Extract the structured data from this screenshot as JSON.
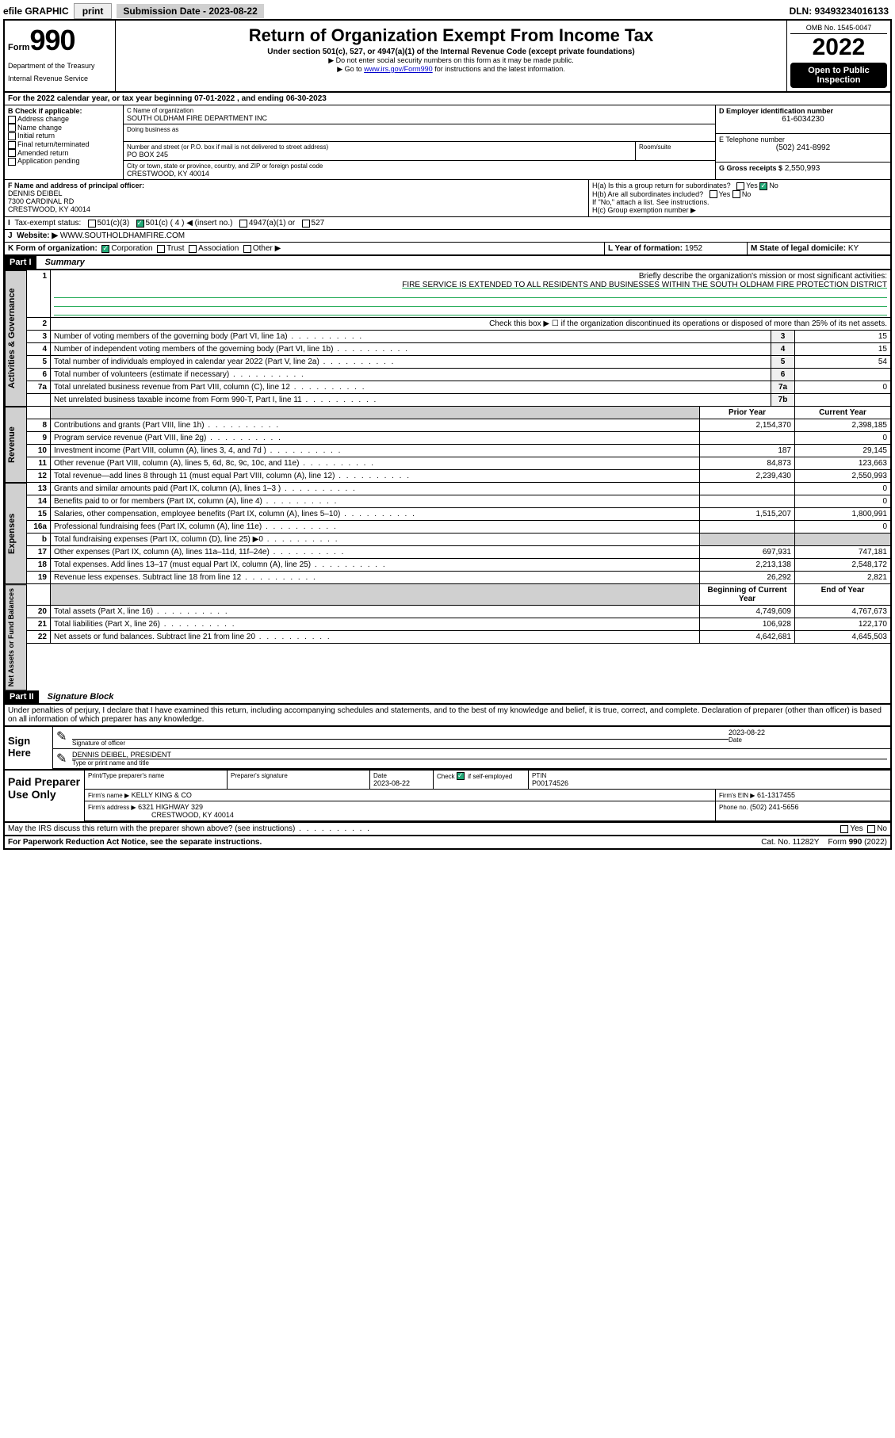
{
  "topbar": {
    "efile": "efile GRAPHIC",
    "print": "print",
    "subdate_label": "Submission Date - 2023-08-22",
    "dln": "DLN: 93493234016133"
  },
  "header": {
    "form_word": "Form",
    "form_num": "990",
    "dept": "Department of the Treasury",
    "irs": "Internal Revenue Service",
    "title": "Return of Organization Exempt From Income Tax",
    "sub": "Under section 501(c), 527, or 4947(a)(1) of the Internal Revenue Code (except private foundations)",
    "note1": "▶ Do not enter social security numbers on this form as it may be made public.",
    "note2_pre": "▶ Go to ",
    "note2_link": "www.irs.gov/Form990",
    "note2_post": " for instructions and the latest information.",
    "omb": "OMB No. 1545-0047",
    "year": "2022",
    "open": "Open to Public Inspection"
  },
  "A": {
    "text": "For the 2022 calendar year, or tax year beginning 07-01-2022   , and ending 06-30-2023"
  },
  "B": {
    "label": "B Check if applicable:",
    "addr": "Address change",
    "name": "Name change",
    "init": "Initial return",
    "final": "Final return/terminated",
    "amend": "Amended return",
    "app": "Application pending"
  },
  "C": {
    "label": "C Name of organization",
    "org": "SOUTH OLDHAM FIRE DEPARTMENT INC",
    "dba_label": "Doing business as",
    "street_label": "Number and street (or P.O. box if mail is not delivered to street address)",
    "room_label": "Room/suite",
    "street": "PO BOX 245",
    "city_label": "City or town, state or province, country, and ZIP or foreign postal code",
    "city": "CRESTWOOD, KY  40014"
  },
  "D": {
    "label": "D Employer identification number",
    "val": "61-6034230"
  },
  "E": {
    "label": "E Telephone number",
    "val": "(502) 241-8992"
  },
  "G": {
    "label": "G Gross receipts $",
    "val": "2,550,993"
  },
  "F": {
    "label": "F Name and address of principal officer:",
    "name": "DENNIS DEIBEL",
    "addr1": "7300 CARDINAL RD",
    "addr2": "CRESTWOOD, KY  40014"
  },
  "H": {
    "a": "H(a)  Is this a group return for subordinates?",
    "b": "H(b)  Are all subordinates included?",
    "b_note": "If \"No,\" attach a list. See instructions.",
    "c": "H(c)  Group exemption number ▶",
    "yes": "Yes",
    "no": "No"
  },
  "I": {
    "label": "Tax-exempt status:",
    "c3": "501(c)(3)",
    "c4": "501(c) ( 4 ) ◀ (insert no.)",
    "a4947": "4947(a)(1) or",
    "s527": "527"
  },
  "J": {
    "label": "Website: ▶",
    "val": "WWW.SOUTHOLDHAMFIRE.COM"
  },
  "K": {
    "label": "K Form of organization:",
    "corp": "Corporation",
    "trust": "Trust",
    "assoc": "Association",
    "other": "Other ▶"
  },
  "L": {
    "label": "L Year of formation:",
    "val": "1952"
  },
  "M": {
    "label": "M State of legal domicile:",
    "val": "KY"
  },
  "part1": {
    "label": "Part I",
    "title": "Summary",
    "tab_ag": "Activities & Governance",
    "tab_rev": "Revenue",
    "tab_exp": "Expenses",
    "tab_net": "Net Assets or Fund Balances",
    "l1_label": "Briefly describe the organization's mission or most significant activities:",
    "l1_val": "FIRE SERVICE IS EXTENDED TO ALL RESIDENTS AND BUSINESSES WITHIN THE SOUTH OLDHAM FIRE PROTECTION DISTRICT",
    "l2": "Check this box ▶ ☐  if the organization discontinued its operations or disposed of more than 25% of its net assets.",
    "rows_single": [
      {
        "n": "3",
        "d": "Number of voting members of the governing body (Part VI, line 1a)",
        "b": "3",
        "v": "15"
      },
      {
        "n": "4",
        "d": "Number of independent voting members of the governing body (Part VI, line 1b)",
        "b": "4",
        "v": "15"
      },
      {
        "n": "5",
        "d": "Total number of individuals employed in calendar year 2022 (Part V, line 2a)",
        "b": "5",
        "v": "54"
      },
      {
        "n": "6",
        "d": "Total number of volunteers (estimate if necessary)",
        "b": "6",
        "v": ""
      },
      {
        "n": "7a",
        "d": "Total unrelated business revenue from Part VIII, column (C), line 12",
        "b": "7a",
        "v": "0"
      },
      {
        "n": "",
        "d": "Net unrelated business taxable income from Form 990-T, Part I, line 11",
        "b": "7b",
        "v": ""
      }
    ],
    "col_prior": "Prior Year",
    "col_curr": "Current Year",
    "rows_rev": [
      {
        "n": "8",
        "d": "Contributions and grants (Part VIII, line 1h)",
        "p": "2,154,370",
        "c": "2,398,185"
      },
      {
        "n": "9",
        "d": "Program service revenue (Part VIII, line 2g)",
        "p": "",
        "c": "0"
      },
      {
        "n": "10",
        "d": "Investment income (Part VIII, column (A), lines 3, 4, and 7d )",
        "p": "187",
        "c": "29,145"
      },
      {
        "n": "11",
        "d": "Other revenue (Part VIII, column (A), lines 5, 6d, 8c, 9c, 10c, and 11e)",
        "p": "84,873",
        "c": "123,663"
      },
      {
        "n": "12",
        "d": "Total revenue—add lines 8 through 11 (must equal Part VIII, column (A), line 12)",
        "p": "2,239,430",
        "c": "2,550,993"
      }
    ],
    "rows_exp": [
      {
        "n": "13",
        "d": "Grants and similar amounts paid (Part IX, column (A), lines 1–3 )",
        "p": "",
        "c": "0"
      },
      {
        "n": "14",
        "d": "Benefits paid to or for members (Part IX, column (A), line 4)",
        "p": "",
        "c": "0"
      },
      {
        "n": "15",
        "d": "Salaries, other compensation, employee benefits (Part IX, column (A), lines 5–10)",
        "p": "1,515,207",
        "c": "1,800,991"
      },
      {
        "n": "16a",
        "d": "Professional fundraising fees (Part IX, column (A), line 11e)",
        "p": "",
        "c": "0"
      },
      {
        "n": "b",
        "d": "Total fundraising expenses (Part IX, column (D), line 25) ▶0",
        "p": "",
        "c": "",
        "grey": true
      },
      {
        "n": "17",
        "d": "Other expenses (Part IX, column (A), lines 11a–11d, 11f–24e)",
        "p": "697,931",
        "c": "747,181"
      },
      {
        "n": "18",
        "d": "Total expenses. Add lines 13–17 (must equal Part IX, column (A), line 25)",
        "p": "2,213,138",
        "c": "2,548,172"
      },
      {
        "n": "19",
        "d": "Revenue less expenses. Subtract line 18 from line 12",
        "p": "26,292",
        "c": "2,821"
      }
    ],
    "col_beg": "Beginning of Current Year",
    "col_end": "End of Year",
    "rows_net": [
      {
        "n": "20",
        "d": "Total assets (Part X, line 16)",
        "p": "4,749,609",
        "c": "4,767,673"
      },
      {
        "n": "21",
        "d": "Total liabilities (Part X, line 26)",
        "p": "106,928",
        "c": "122,170"
      },
      {
        "n": "22",
        "d": "Net assets or fund balances. Subtract line 21 from line 20",
        "p": "4,642,681",
        "c": "4,645,503"
      }
    ]
  },
  "part2": {
    "label": "Part II",
    "title": "Signature Block",
    "decl": "Under penalties of perjury, I declare that I have examined this return, including accompanying schedules and statements, and to the best of my knowledge and belief, it is true, correct, and complete. Declaration of preparer (other than officer) is based on all information of which preparer has any knowledge."
  },
  "sign": {
    "label": "Sign Here",
    "sig_label": "Signature of officer",
    "date_label": "Date",
    "date": "2023-08-22",
    "name": "DENNIS DEIBEL, PRESIDENT",
    "name_label": "Type or print name and title"
  },
  "prep": {
    "label": "Paid Preparer Use Only",
    "pt_label": "Print/Type preparer's name",
    "sig_label": "Preparer's signature",
    "date_label": "Date",
    "date": "2023-08-22",
    "check_label": "Check ☑ if self-employed",
    "ptin_label": "PTIN",
    "ptin": "P00174526",
    "firm_name_label": "Firm's name    ▶",
    "firm_name": "KELLY KING & CO",
    "firm_ein_label": "Firm's EIN ▶",
    "firm_ein": "61-1317455",
    "firm_addr_label": "Firm's address ▶",
    "firm_addr1": "6321 HIGHWAY 329",
    "firm_addr2": "CRESTWOOD, KY  40014",
    "phone_label": "Phone no.",
    "phone": "(502) 241-5656"
  },
  "footer": {
    "q": "May the IRS discuss this return with the preparer shown above? (see instructions)",
    "yes": "Yes",
    "no": "No",
    "pra": "For Paperwork Reduction Act Notice, see the separate instructions.",
    "cat": "Cat. No. 11282Y",
    "form": "Form 990 (2022)"
  }
}
